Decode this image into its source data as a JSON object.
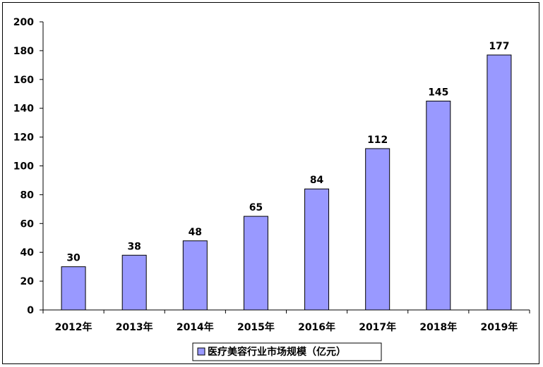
{
  "chart_data": {
    "type": "bar",
    "categories": [
      "2012年",
      "2013年",
      "2014年",
      "2015年",
      "2016年",
      "2017年",
      "2018年",
      "2019年"
    ],
    "series": [
      {
        "name": "医疗美容行业市场规模（亿元）",
        "values": [
          30,
          38,
          48,
          65,
          84,
          112,
          145,
          177
        ]
      }
    ],
    "title": "",
    "xlabel": "",
    "ylabel": "",
    "ylim": [
      0,
      200
    ],
    "yticks": [
      0,
      20,
      40,
      60,
      80,
      100,
      120,
      140,
      160,
      180,
      200
    ],
    "data_labels": true,
    "grid": false,
    "legend_position": "bottom",
    "colors": {
      "bar_fill": "#9999FF",
      "bar_stroke": "#000000"
    }
  }
}
